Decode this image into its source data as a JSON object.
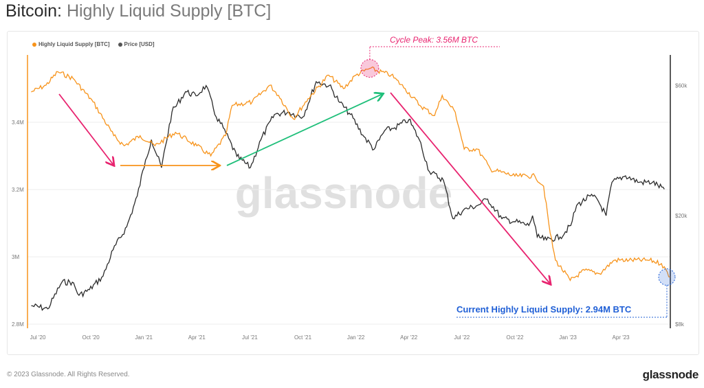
{
  "title": {
    "main": "Bitcoin: ",
    "sub": "Highly Liquid Supply [BTC]"
  },
  "footer": {
    "copyright": "© 2023 Glassnode. All Rights Reserved.",
    "logo": "glassnode"
  },
  "watermark": "glassnode",
  "colors": {
    "supply": "#f7931a",
    "price": "#2a2a2a",
    "pink": "#e8236f",
    "green": "#1fbf7a",
    "blue": "#1f5fd6"
  },
  "chart_data": {
    "type": "line",
    "title": "Bitcoin: Highly Liquid Supply [BTC]",
    "legend": [
      {
        "name": "Highly Liquid Supply [BTC]",
        "color": "#f7931a"
      },
      {
        "name": "Price [USD]",
        "color": "#555555"
      }
    ],
    "legend_position": "top-left",
    "x_ticks": [
      "Jul '20",
      "Oct '20",
      "Jan '21",
      "Apr '21",
      "Jul '21",
      "Oct '21",
      "Jan '22",
      "Apr '22",
      "Jul '22",
      "Oct '22",
      "Jan '23",
      "Apr '23"
    ],
    "y_left": {
      "label": "Highly Liquid Supply [BTC]",
      "ticks": [
        "2.8M",
        "3M",
        "3.2M",
        "3.4M"
      ],
      "tick_values": [
        2.8,
        3.0,
        3.2,
        3.4
      ],
      "range": [
        2.79,
        3.6
      ],
      "unit": "M BTC"
    },
    "y_right": {
      "label": "Price [USD]",
      "scale": "log",
      "ticks": [
        "$8k",
        "$20k",
        "$60k"
      ],
      "tick_values": [
        8000,
        20000,
        60000
      ]
    },
    "grid": true,
    "series": [
      {
        "name": "Highly Liquid Supply [BTC]",
        "axis": "left",
        "points": [
          [
            "2020-06-20",
            3.49
          ],
          [
            "2020-07-15",
            3.51
          ],
          [
            "2020-08-05",
            3.55
          ],
          [
            "2020-09-01",
            3.53
          ],
          [
            "2020-10-05",
            3.46
          ],
          [
            "2020-11-10",
            3.36
          ],
          [
            "2020-11-28",
            3.33
          ],
          [
            "2020-12-25",
            3.36
          ],
          [
            "2021-01-20",
            3.33
          ],
          [
            "2021-02-25",
            3.37
          ],
          [
            "2021-04-01",
            3.33
          ],
          [
            "2021-04-25",
            3.3
          ],
          [
            "2021-05-20",
            3.36
          ],
          [
            "2021-06-01",
            3.45
          ],
          [
            "2021-07-05",
            3.46
          ],
          [
            "2021-08-05",
            3.51
          ],
          [
            "2021-08-20",
            3.48
          ],
          [
            "2021-09-15",
            3.41
          ],
          [
            "2021-10-10",
            3.47
          ],
          [
            "2021-11-15",
            3.54
          ],
          [
            "2021-12-10",
            3.5
          ],
          [
            "2022-01-01",
            3.54
          ],
          [
            "2022-01-25",
            3.56
          ],
          [
            "2022-03-01",
            3.54
          ],
          [
            "2022-03-25",
            3.5
          ],
          [
            "2022-04-20",
            3.45
          ],
          [
            "2022-05-15",
            3.42
          ],
          [
            "2022-05-28",
            3.48
          ],
          [
            "2022-06-20",
            3.43
          ],
          [
            "2022-07-05",
            3.32
          ],
          [
            "2022-07-28",
            3.32
          ],
          [
            "2022-08-20",
            3.26
          ],
          [
            "2022-10-01",
            3.24
          ],
          [
            "2022-11-05",
            3.24
          ],
          [
            "2022-11-20",
            3.21
          ],
          [
            "2022-12-01",
            3.07
          ],
          [
            "2022-12-10",
            2.99
          ],
          [
            "2023-01-05",
            2.93
          ],
          [
            "2023-01-30",
            2.96
          ],
          [
            "2023-02-25",
            2.95
          ],
          [
            "2023-03-20",
            2.99
          ],
          [
            "2023-04-15",
            2.99
          ],
          [
            "2023-05-20",
            2.99
          ],
          [
            "2023-06-10",
            2.98
          ],
          [
            "2023-06-25",
            2.94
          ]
        ]
      },
      {
        "name": "Price [USD]",
        "axis": "right",
        "points": [
          [
            "2020-06-20",
            9350
          ],
          [
            "2020-07-18",
            9100
          ],
          [
            "2020-08-12",
            11400
          ],
          [
            "2020-08-30",
            11400
          ],
          [
            "2020-09-11",
            10200
          ],
          [
            "2020-09-29",
            10700
          ],
          [
            "2020-10-22",
            12000
          ],
          [
            "2020-11-09",
            15000
          ],
          [
            "2020-12-02",
            18200
          ],
          [
            "2020-12-20",
            23600
          ],
          [
            "2021-01-04",
            32000
          ],
          [
            "2021-01-14",
            38000
          ],
          [
            "2021-02-01",
            30000
          ],
          [
            "2021-02-19",
            48000
          ],
          [
            "2021-03-12",
            57000
          ],
          [
            "2021-03-30",
            55000
          ],
          [
            "2021-04-17",
            60000
          ],
          [
            "2021-05-04",
            46000
          ],
          [
            "2021-05-16",
            42000
          ],
          [
            "2021-06-09",
            33000
          ],
          [
            "2021-07-02",
            30000
          ],
          [
            "2021-07-20",
            38000
          ],
          [
            "2021-08-13",
            47000
          ],
          [
            "2021-09-06",
            48000
          ],
          [
            "2021-10-01",
            46000
          ],
          [
            "2021-10-24",
            62000
          ],
          [
            "2021-11-16",
            60000
          ],
          [
            "2021-12-04",
            52000
          ],
          [
            "2021-12-22",
            47000
          ],
          [
            "2022-01-15",
            39000
          ],
          [
            "2022-02-02",
            35000
          ],
          [
            "2022-02-20",
            41000
          ],
          [
            "2022-03-07",
            42000
          ],
          [
            "2022-04-01",
            45000
          ],
          [
            "2022-04-19",
            38000
          ],
          [
            "2022-05-06",
            29000
          ],
          [
            "2022-05-30",
            27000
          ],
          [
            "2022-06-16",
            19500
          ],
          [
            "2022-07-04",
            21000
          ],
          [
            "2022-07-28",
            21800
          ],
          [
            "2022-08-15",
            23000
          ],
          [
            "2022-09-09",
            19500
          ],
          [
            "2022-10-02",
            19000
          ],
          [
            "2022-10-25",
            18400
          ],
          [
            "2022-11-01",
            20000
          ],
          [
            "2022-11-09",
            16700
          ],
          [
            "2022-11-25",
            16300
          ],
          [
            "2022-12-18",
            16700
          ],
          [
            "2023-01-06",
            18400
          ],
          [
            "2023-01-16",
            21800
          ],
          [
            "2023-02-09",
            23600
          ],
          [
            "2023-02-21",
            23000
          ],
          [
            "2023-03-06",
            20000
          ],
          [
            "2023-03-16",
            26500
          ],
          [
            "2023-04-09",
            28000
          ],
          [
            "2023-05-02",
            26500
          ],
          [
            "2023-05-25",
            26500
          ],
          [
            "2023-06-15",
            25000
          ]
        ]
      }
    ],
    "annotations": {
      "peak_label": "Cycle Peak: 3.56M BTC",
      "peak": {
        "date": "2022-01-25",
        "value": 3.56
      },
      "current_label": "Current Highly Liquid Supply: 2.94M BTC",
      "current": {
        "date": "2023-06-25",
        "value": 2.94
      }
    }
  }
}
